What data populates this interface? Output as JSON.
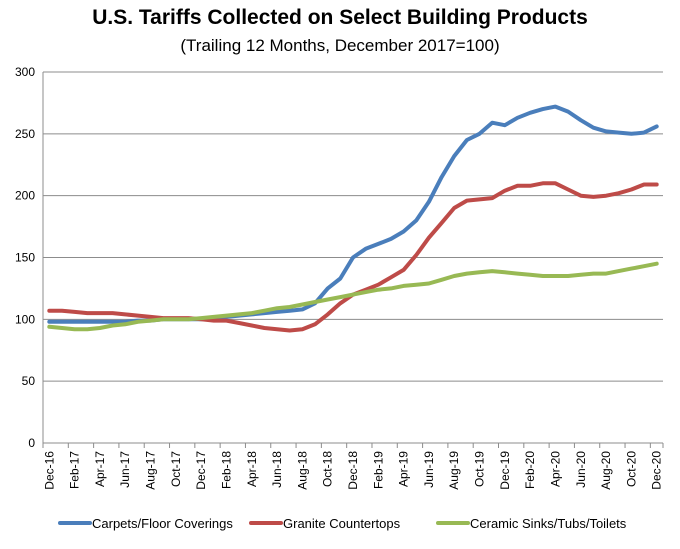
{
  "chart_data": {
    "type": "line",
    "title": "U.S. Tariffs Collected on Select Building Products",
    "subtitle": "(Trailing 12 Months, December 2017=100)",
    "xlabel": "",
    "ylabel": "",
    "ylim": [
      0,
      300
    ],
    "yticks": [
      0,
      50,
      100,
      150,
      200,
      250,
      300
    ],
    "grid": true,
    "legend_position": "bottom",
    "categories": [
      "Dec-16",
      "Jan-17",
      "Feb-17",
      "Mar-17",
      "Apr-17",
      "May-17",
      "Jun-17",
      "Jul-17",
      "Aug-17",
      "Sep-17",
      "Oct-17",
      "Nov-17",
      "Dec-17",
      "Jan-18",
      "Feb-18",
      "Mar-18",
      "Apr-18",
      "May-18",
      "Jun-18",
      "Jul-18",
      "Aug-18",
      "Sep-18",
      "Oct-18",
      "Nov-18",
      "Dec-18",
      "Jan-19",
      "Feb-19",
      "Mar-19",
      "Apr-19",
      "May-19",
      "Jun-19",
      "Jul-19",
      "Aug-19",
      "Sep-19",
      "Oct-19",
      "Nov-19",
      "Dec-19",
      "Jan-20",
      "Feb-20",
      "Mar-20",
      "Apr-20",
      "May-20",
      "Jun-20",
      "Jul-20",
      "Aug-20",
      "Sep-20",
      "Oct-20",
      "Nov-20",
      "Dec-20"
    ],
    "tick_labels": [
      "Dec-16",
      "Feb-17",
      "Apr-17",
      "Jun-17",
      "Aug-17",
      "Oct-17",
      "Dec-17",
      "Feb-18",
      "Apr-18",
      "Jun-18",
      "Aug-18",
      "Oct-18",
      "Dec-18",
      "Feb-19",
      "Apr-19",
      "Jun-19",
      "Aug-19",
      "Oct-19",
      "Dec-19",
      "Feb-20",
      "Apr-20",
      "Jun-20",
      "Aug-20",
      "Oct-20",
      "Dec-20"
    ],
    "series": [
      {
        "name": "Carpets/Floor Coverings",
        "color": "#4a7ebb",
        "values": [
          98,
          98,
          98,
          98,
          98,
          98,
          98,
          99,
          99,
          100,
          100,
          100,
          100,
          101,
          102,
          103,
          104,
          105,
          106,
          107,
          108,
          113,
          125,
          133,
          150,
          157,
          161,
          165,
          171,
          180,
          195,
          215,
          232,
          245,
          250,
          259,
          257,
          263,
          267,
          270,
          272,
          268,
          261,
          255,
          252,
          251,
          250,
          251,
          256
        ]
      },
      {
        "name": "Granite Countertops",
        "color": "#be4b48",
        "values": [
          107,
          107,
          106,
          105,
          105,
          105,
          104,
          103,
          102,
          101,
          101,
          101,
          100,
          99,
          99,
          97,
          95,
          93,
          92,
          91,
          92,
          96,
          104,
          113,
          120,
          124,
          128,
          134,
          140,
          152,
          166,
          178,
          190,
          196,
          197,
          198,
          204,
          208,
          208,
          210,
          210,
          205,
          200,
          199,
          200,
          202,
          205,
          209,
          209
        ]
      },
      {
        "name": "Ceramic Sinks/Tubs/Toilets",
        "color": "#98b954",
        "values": [
          94,
          93,
          92,
          92,
          93,
          95,
          96,
          98,
          99,
          100,
          100,
          100,
          101,
          102,
          103,
          104,
          105,
          107,
          109,
          110,
          112,
          114,
          116,
          118,
          120,
          122,
          124,
          125,
          127,
          128,
          129,
          132,
          135,
          137,
          138,
          139,
          138,
          137,
          136,
          135,
          135,
          135,
          136,
          137,
          137,
          139,
          141,
          143,
          145
        ]
      }
    ]
  }
}
